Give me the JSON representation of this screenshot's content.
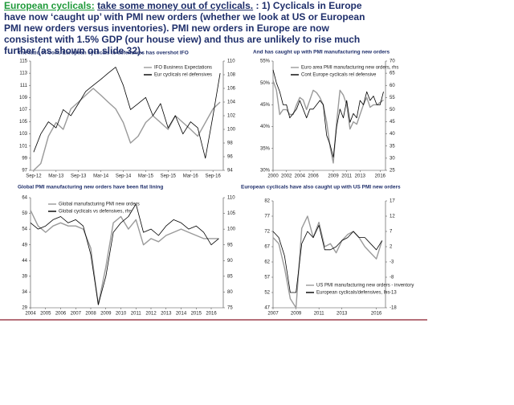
{
  "header": {
    "lead": "European cyclicals:",
    "action": "take some money out of cyclicals.",
    "body": ": 1) Cyclicals in Europe have now ‘caught up’ with PMI new orders (whether we look at US or European PMI new orders versus inventories). PMI new orders in Europe are now consistent with 1.5% GDP (our house view) and thus are unlikely to rise much further (as shown on slide 32)."
  },
  "chart_data": [
    {
      "type": "line",
      "title": "The ratio of Cont. European cyclicals to defensives has overshot IFO",
      "legend": "upper right",
      "x": [
        2012.67,
        2012.83,
        2013.0,
        2013.17,
        2013.33,
        2013.5,
        2013.67,
        2013.83,
        2014.0,
        2014.17,
        2014.33,
        2014.5,
        2014.67,
        2014.83,
        2015.0,
        2015.17,
        2015.33,
        2015.5,
        2015.67,
        2015.83,
        2016.0,
        2016.17,
        2016.33,
        2016.5,
        2016.67,
        2016.83
      ],
      "xlim": [
        2012.6,
        2016.9
      ],
      "xticks": [
        {
          "value": 2012.67,
          "label": "Sep-12"
        },
        {
          "value": 2013.17,
          "label": "Mar-13"
        },
        {
          "value": 2013.67,
          "label": "Sep-13"
        },
        {
          "value": 2014.17,
          "label": "Mar-14"
        },
        {
          "value": 2014.67,
          "label": "Sep-14"
        },
        {
          "value": 2015.17,
          "label": "Mar-15"
        },
        {
          "value": 2015.67,
          "label": "Sep-15"
        },
        {
          "value": 2016.17,
          "label": "Mar-16"
        },
        {
          "value": 2016.67,
          "label": "Sep-16"
        }
      ],
      "ylim": [
        97,
        115
      ],
      "yticks": [
        97,
        99,
        101,
        103,
        105,
        107,
        109,
        111,
        113,
        115
      ],
      "y2lim": [
        94,
        110
      ],
      "y2ticks": [
        94,
        96,
        98,
        100,
        102,
        104,
        106,
        108,
        110
      ],
      "series": [
        {
          "name": "IFO Business Expectations",
          "color": "#9a9a9a",
          "axis": "y2",
          "values": [
            94,
            95,
            99,
            101,
            100,
            103,
            104,
            105,
            106,
            105,
            104,
            103,
            101,
            98,
            99,
            101,
            102,
            101,
            100,
            102,
            101,
            100,
            99,
            101,
            103,
            104
          ]
        },
        {
          "name": "Eur cyclicals rel defensives",
          "color": "#000000",
          "values": [
            100,
            103,
            105,
            104,
            107,
            106,
            108,
            110,
            111,
            112,
            113,
            114,
            111,
            107,
            108,
            109,
            106,
            108,
            104,
            106,
            103,
            105,
            104,
            99,
            106,
            113
          ]
        }
      ]
    },
    {
      "type": "line",
      "title": "And has caught up with PMI manufacturing new orders",
      "legend": "upper left",
      "x": [
        2000,
        2000.5,
        2001,
        2001.5,
        2002,
        2002.5,
        2003,
        2003.5,
        2004,
        2004.5,
        2005,
        2005.5,
        2006,
        2006.5,
        2007,
        2007.5,
        2008,
        2008.5,
        2009,
        2009.5,
        2010,
        2010.5,
        2011,
        2011.5,
        2012,
        2012.5,
        2013,
        2013.5,
        2014,
        2014.5,
        2015,
        2015.5,
        2016,
        2016.5
      ],
      "xlim": [
        2000,
        2016.8
      ],
      "xticks": [
        2000,
        2002,
        2004,
        2006,
        2009,
        2011,
        2013,
        2016
      ],
      "ylim": [
        30,
        55
      ],
      "yticks": [
        {
          "value": 30,
          "label": "30%"
        },
        {
          "value": 35,
          "label": "35%"
        },
        {
          "value": 40,
          "label": "40%"
        },
        {
          "value": 45,
          "label": "45%"
        },
        {
          "value": 50,
          "label": "50%"
        },
        {
          "value": 55,
          "label": "55%"
        }
      ],
      "y2lim": [
        25,
        70
      ],
      "y2ticks": [
        25,
        30,
        35,
        40,
        45,
        50,
        55,
        60,
        65,
        70
      ],
      "series": [
        {
          "name": "Euro area PMI manufacturing new orders, rhs",
          "color": "#9a9a9a",
          "axis": "y2",
          "values": [
            62,
            58,
            48,
            50,
            50,
            48,
            48,
            52,
            55,
            54,
            50,
            54,
            58,
            57,
            55,
            52,
            45,
            35,
            28,
            45,
            58,
            56,
            52,
            42,
            45,
            44,
            48,
            52,
            55,
            51,
            52,
            52,
            53,
            54
          ]
        },
        {
          "name": "Cont Europe cyclicals rel defensive",
          "color": "#000000",
          "values": [
            53,
            50,
            48,
            45,
            45,
            42,
            43,
            44,
            46,
            44,
            42,
            44,
            44,
            45,
            46,
            45,
            38,
            36,
            33,
            40,
            44,
            42,
            46,
            41,
            43,
            42,
            46,
            45,
            48,
            46,
            47,
            45,
            45,
            48
          ]
        }
      ]
    },
    {
      "type": "line",
      "title": "Global PMI manufacturing new orders have been flat lining",
      "legend": "upper left",
      "x": [
        2004,
        2004.5,
        2005,
        2005.5,
        2006,
        2006.5,
        2007,
        2007.5,
        2008,
        2008.5,
        2009,
        2009.5,
        2010,
        2010.5,
        2011,
        2011.5,
        2012,
        2012.5,
        2013,
        2013.5,
        2014,
        2014.5,
        2015,
        2015.5,
        2016,
        2016.5
      ],
      "xlim": [
        2004,
        2016.8
      ],
      "xticks": [
        2004,
        2005,
        2006,
        2007,
        2008,
        2009,
        2010,
        2011,
        2012,
        2013,
        2014,
        2015,
        2016
      ],
      "ylim": [
        29,
        64
      ],
      "yticks": [
        29,
        34,
        39,
        44,
        49,
        54,
        59,
        64
      ],
      "y2lim": [
        75,
        110
      ],
      "y2ticks": [
        75,
        80,
        85,
        90,
        95,
        100,
        105,
        110
      ],
      "series": [
        {
          "name": "Global manufacturing PMI new orders",
          "color": "#9a9a9a",
          "values": [
            60,
            55,
            53,
            55,
            56,
            55,
            55,
            54,
            48,
            30,
            42,
            56,
            58,
            54,
            57,
            49,
            51,
            50,
            52,
            53,
            54,
            53,
            52,
            51,
            51,
            51
          ]
        },
        {
          "name": "Global cyclicals vs defensives, rhs",
          "color": "#000000",
          "axis": "y2",
          "values": [
            102,
            100,
            101,
            103,
            104,
            102,
            103,
            101,
            92,
            76,
            85,
            99,
            102,
            104,
            108,
            99,
            100,
            98,
            101,
            103,
            102,
            100,
            101,
            99,
            95,
            97
          ]
        }
      ]
    },
    {
      "type": "line",
      "title": "European cyclicals have also caught up with US PMI new orders",
      "legend": "lower right",
      "x": [
        2007,
        2007.5,
        2008,
        2008.5,
        2009,
        2009.5,
        2010,
        2010.5,
        2011,
        2011.5,
        2012,
        2012.5,
        2013,
        2013.5,
        2014,
        2014.5,
        2015,
        2015.5,
        2016,
        2016.5
      ],
      "xlim": [
        2007,
        2016.8
      ],
      "xticks": [
        2007,
        2009,
        2011,
        2013,
        2016
      ],
      "ylim": [
        47,
        82
      ],
      "yticks": [
        47,
        52,
        57,
        62,
        67,
        72,
        77,
        82
      ],
      "y2lim": [
        -18,
        17
      ],
      "y2ticks": [
        -18,
        -13,
        -8,
        -3,
        2,
        7,
        12,
        17
      ],
      "series": [
        {
          "name": "US PMI manufacturing new orders - inventory",
          "color": "#9a9a9a",
          "axis": "y2",
          "values": [
            5,
            3,
            -5,
            -15,
            -18,
            8,
            12,
            5,
            10,
            2,
            3,
            0,
            4,
            6,
            7,
            5,
            2,
            0,
            -2,
            4
          ]
        },
        {
          "name": "European cyclicals/defensives, lhs",
          "color": "#000000",
          "values": [
            72,
            70,
            64,
            52,
            52,
            68,
            72,
            70,
            74,
            66,
            66,
            67,
            69,
            70,
            72,
            70,
            70,
            68,
            66,
            69
          ]
        }
      ]
    }
  ]
}
